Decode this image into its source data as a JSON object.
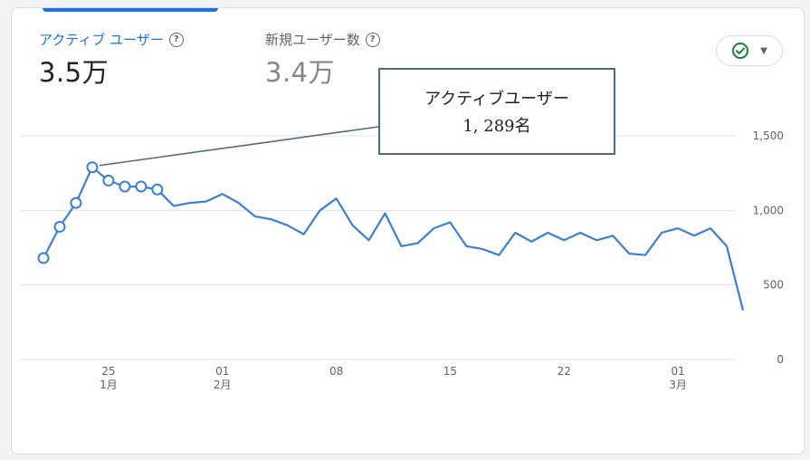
{
  "metrics": [
    {
      "label": "アクティブ ユーザー",
      "value": "3.5万",
      "active": true
    },
    {
      "label": "新規ユーザー数",
      "value": "3.4万",
      "active": false
    }
  ],
  "help_icon": "help-circle-icon",
  "compare_button": {
    "icon": "check-circle-icon",
    "chevron": "dropdown-arrow-icon"
  },
  "tooltip": {
    "title": "アクティブユーザー",
    "value": "1, 289名"
  },
  "colors": {
    "accent": "#1a73e8",
    "line": "#3b7fd9",
    "grid": "#e0e0e0",
    "tooltip_border": "#4f6a86",
    "check": "#188038"
  },
  "chart_data": {
    "type": "line",
    "series": [
      {
        "name": "アクティブ ユーザー",
        "values": [
          680,
          890,
          1050,
          1289,
          1200,
          1160,
          1160,
          1140,
          1030,
          1050,
          1060,
          1110,
          1050,
          960,
          940,
          900,
          840,
          1000,
          1080,
          900,
          800,
          980,
          760,
          780,
          880,
          920,
          760,
          740,
          700,
          850,
          790,
          850,
          800,
          850,
          800,
          830,
          710,
          700,
          850,
          880,
          830,
          880,
          760,
          330
        ]
      }
    ],
    "highlighted_points": 8,
    "x_ticks": [
      {
        "index": 4,
        "label": "25",
        "sub": "1月"
      },
      {
        "index": 11,
        "label": "01",
        "sub": "2月"
      },
      {
        "index": 18,
        "label": "08",
        "sub": ""
      },
      {
        "index": 25,
        "label": "15",
        "sub": ""
      },
      {
        "index": 32,
        "label": "22",
        "sub": ""
      },
      {
        "index": 39,
        "label": "01",
        "sub": "3月"
      }
    ],
    "y_ticks": [
      {
        "value": 1500,
        "label": "1,500"
      },
      {
        "value": 1000,
        "label": "1,000"
      },
      {
        "value": 500,
        "label": "500"
      },
      {
        "value": 0,
        "label": "0"
      }
    ],
    "ylim": [
      0,
      1500
    ],
    "grid": true
  }
}
